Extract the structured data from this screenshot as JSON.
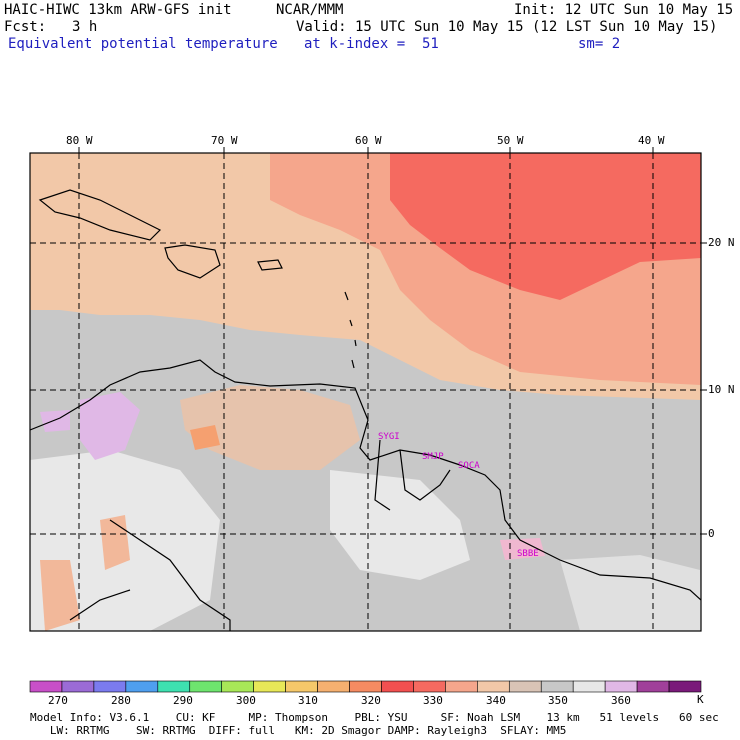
{
  "header": {
    "model": "HAIC-HIWC 13km ARW-GFS init",
    "org": "NCAR/MMM",
    "init": "Init: 12 UTC Sun 10 May 15",
    "fcst_label": "Fcst:",
    "fcst_value": "3 h",
    "valid": "Valid: 15 UTC Sun 10 May 15 (12 LST Sun 10 May 15)",
    "field": "Equivalent potential temperature",
    "level": "at k-index =  51",
    "smooth": "sm= 2"
  },
  "map": {
    "lon_labels": [
      "80 W",
      "70 W",
      "60 W",
      "50 W",
      "40 W"
    ],
    "lat_labels": [
      "20 N",
      "10 N",
      "0"
    ],
    "station_labels": [
      "SYGI",
      "SMJP",
      "SOCA",
      "SBBE"
    ],
    "station_color": "#cc00cc"
  },
  "colorbar": {
    "unit": "K",
    "labels": [
      "270",
      "280",
      "290",
      "300",
      "310",
      "320",
      "330",
      "340",
      "350",
      "360"
    ],
    "colors": [
      "#c84fc8",
      "#9b6bd6",
      "#7b7bef",
      "#4f9fef",
      "#3ee0b0",
      "#6ee46e",
      "#a8e858",
      "#e8e858",
      "#f5c86a",
      "#f5b070",
      "#f58b62",
      "#f25050",
      "#f56a60",
      "#f5a68c",
      "#f2c8a8",
      "#d9c4b6",
      "#c8c8c8",
      "#e8e8e8",
      "#e0b8e6",
      "#a0409a",
      "#7a1a7a"
    ]
  },
  "footer": {
    "line1": "Model Info: V3.6.1    CU: KF     MP: Thompson    PBL: YSU     SF: Noah LSM    13 km   51 levels   60 sec",
    "line2": "   LW: RRTMG    SW: RRTMG  DIFF: full   KM: 2D Smagor DAMP: Rayleigh3  SFLAY: MM5"
  }
}
